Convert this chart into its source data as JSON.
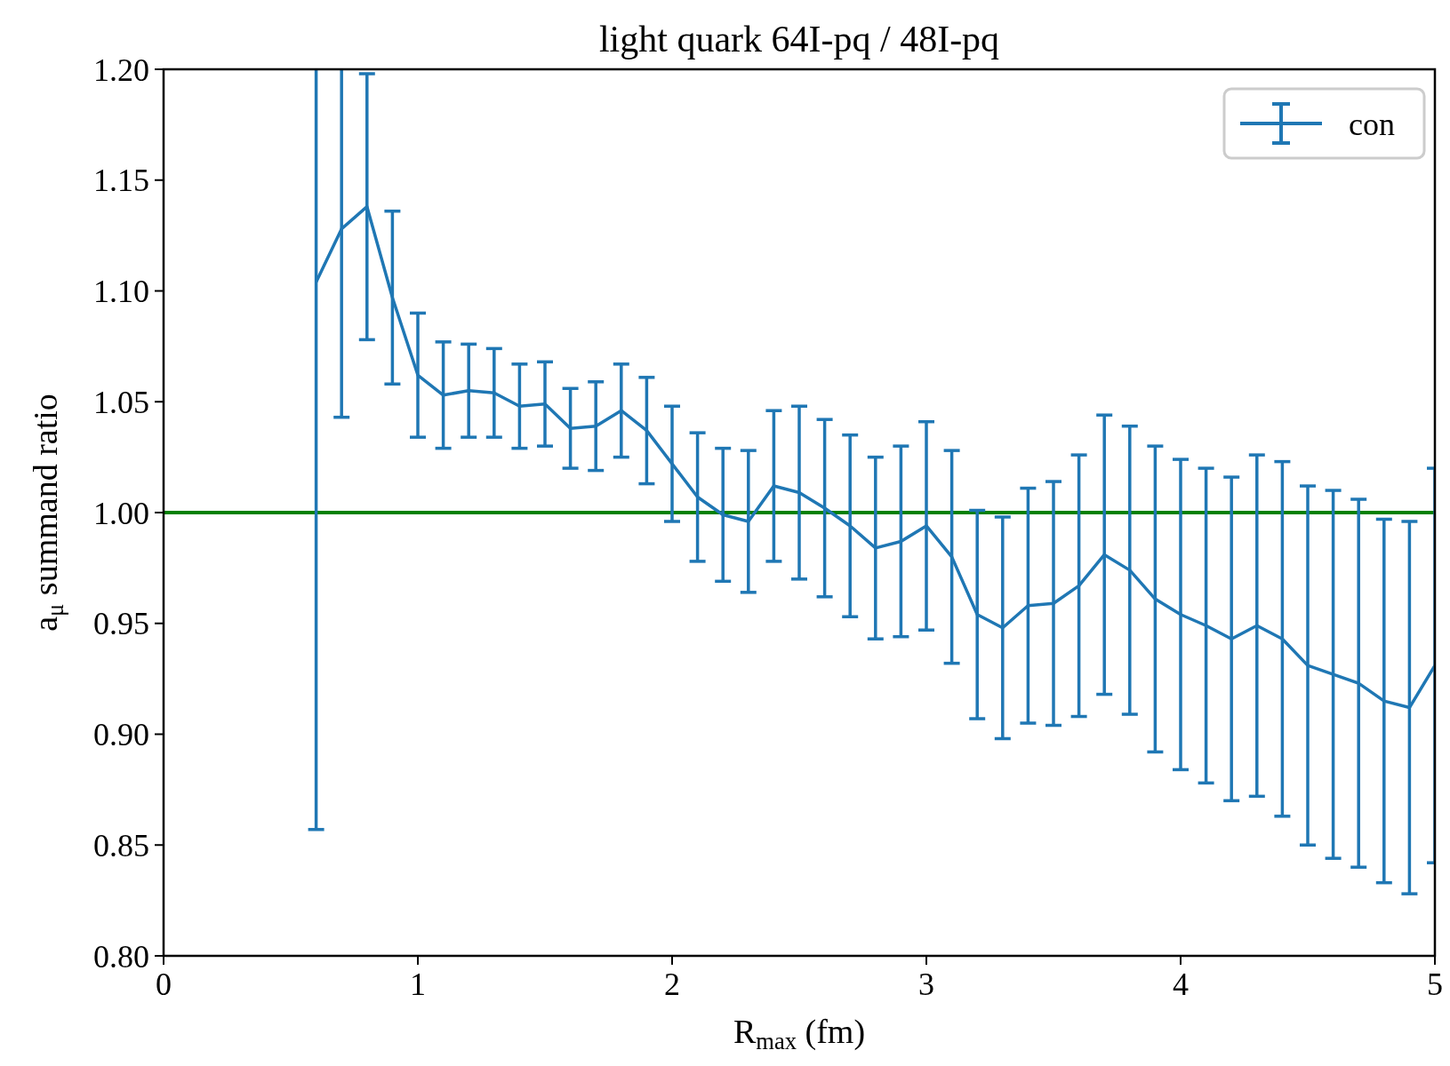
{
  "chart_data": {
    "type": "line",
    "title": "light quark 64I-pq / 48I-pq",
    "xlabel": "R$_{max}$ (fm)",
    "ylabel": "a$_{μ}$ summand ratio",
    "x": [
      0.6,
      0.7,
      0.8,
      0.9,
      1.0,
      1.1,
      1.2,
      1.3,
      1.4,
      1.5,
      1.6,
      1.7,
      1.8,
      1.9,
      2.0,
      2.1,
      2.2,
      2.3,
      2.4,
      2.5,
      2.6,
      2.7,
      2.8,
      2.9,
      3.0,
      3.1,
      3.2,
      3.3,
      3.4,
      3.5,
      3.6,
      3.7,
      3.8,
      3.9,
      4.0,
      4.1,
      4.2,
      4.3,
      4.4,
      4.5,
      4.6,
      4.7,
      4.8,
      4.9,
      5.0
    ],
    "series": [
      {
        "name": "con",
        "color": "#1f77b4",
        "values": [
          1.104,
          1.128,
          1.138,
          1.097,
          1.062,
          1.053,
          1.055,
          1.054,
          1.048,
          1.049,
          1.038,
          1.039,
          1.046,
          1.037,
          1.022,
          1.007,
          0.999,
          0.996,
          1.012,
          1.009,
          1.002,
          0.994,
          0.984,
          0.987,
          0.994,
          0.98,
          0.954,
          0.948,
          0.958,
          0.959,
          0.967,
          0.981,
          0.974,
          0.961,
          0.954,
          0.949,
          0.943,
          0.949,
          0.943,
          0.931,
          0.927,
          0.923,
          0.915,
          0.912,
          0.931
        ],
        "errors": [
          0.247,
          0.085,
          0.06,
          0.039,
          0.028,
          0.024,
          0.021,
          0.02,
          0.019,
          0.019,
          0.018,
          0.02,
          0.021,
          0.024,
          0.026,
          0.029,
          0.03,
          0.032,
          0.034,
          0.039,
          0.04,
          0.041,
          0.041,
          0.043,
          0.047,
          0.048,
          0.047,
          0.05,
          0.053,
          0.055,
          0.059,
          0.063,
          0.065,
          0.069,
          0.07,
          0.071,
          0.073,
          0.077,
          0.08,
          0.081,
          0.083,
          0.083,
          0.082,
          0.084,
          0.089
        ]
      }
    ],
    "xlim": [
      0,
      5
    ],
    "xticks": [
      0,
      1,
      2,
      3,
      4,
      5
    ],
    "ylim": [
      0.8,
      1.2
    ],
    "yticks": [
      {
        "value": 0.8,
        "label": "0.80"
      },
      {
        "value": 0.85,
        "label": "0.85"
      },
      {
        "value": 0.9,
        "label": "0.90"
      },
      {
        "value": 0.95,
        "label": "0.95"
      },
      {
        "value": 1.0,
        "label": "1.00"
      },
      {
        "value": 1.05,
        "label": "1.05"
      },
      {
        "value": 1.1,
        "label": "1.10"
      },
      {
        "value": 1.15,
        "label": "1.15"
      },
      {
        "value": 1.2,
        "label": "1.20"
      }
    ],
    "ref_lines": [
      {
        "axis": "y",
        "value": 1.0,
        "color": "#008000"
      }
    ],
    "legend": "top right",
    "marker": "none",
    "line_style": "solid",
    "grid": false
  }
}
